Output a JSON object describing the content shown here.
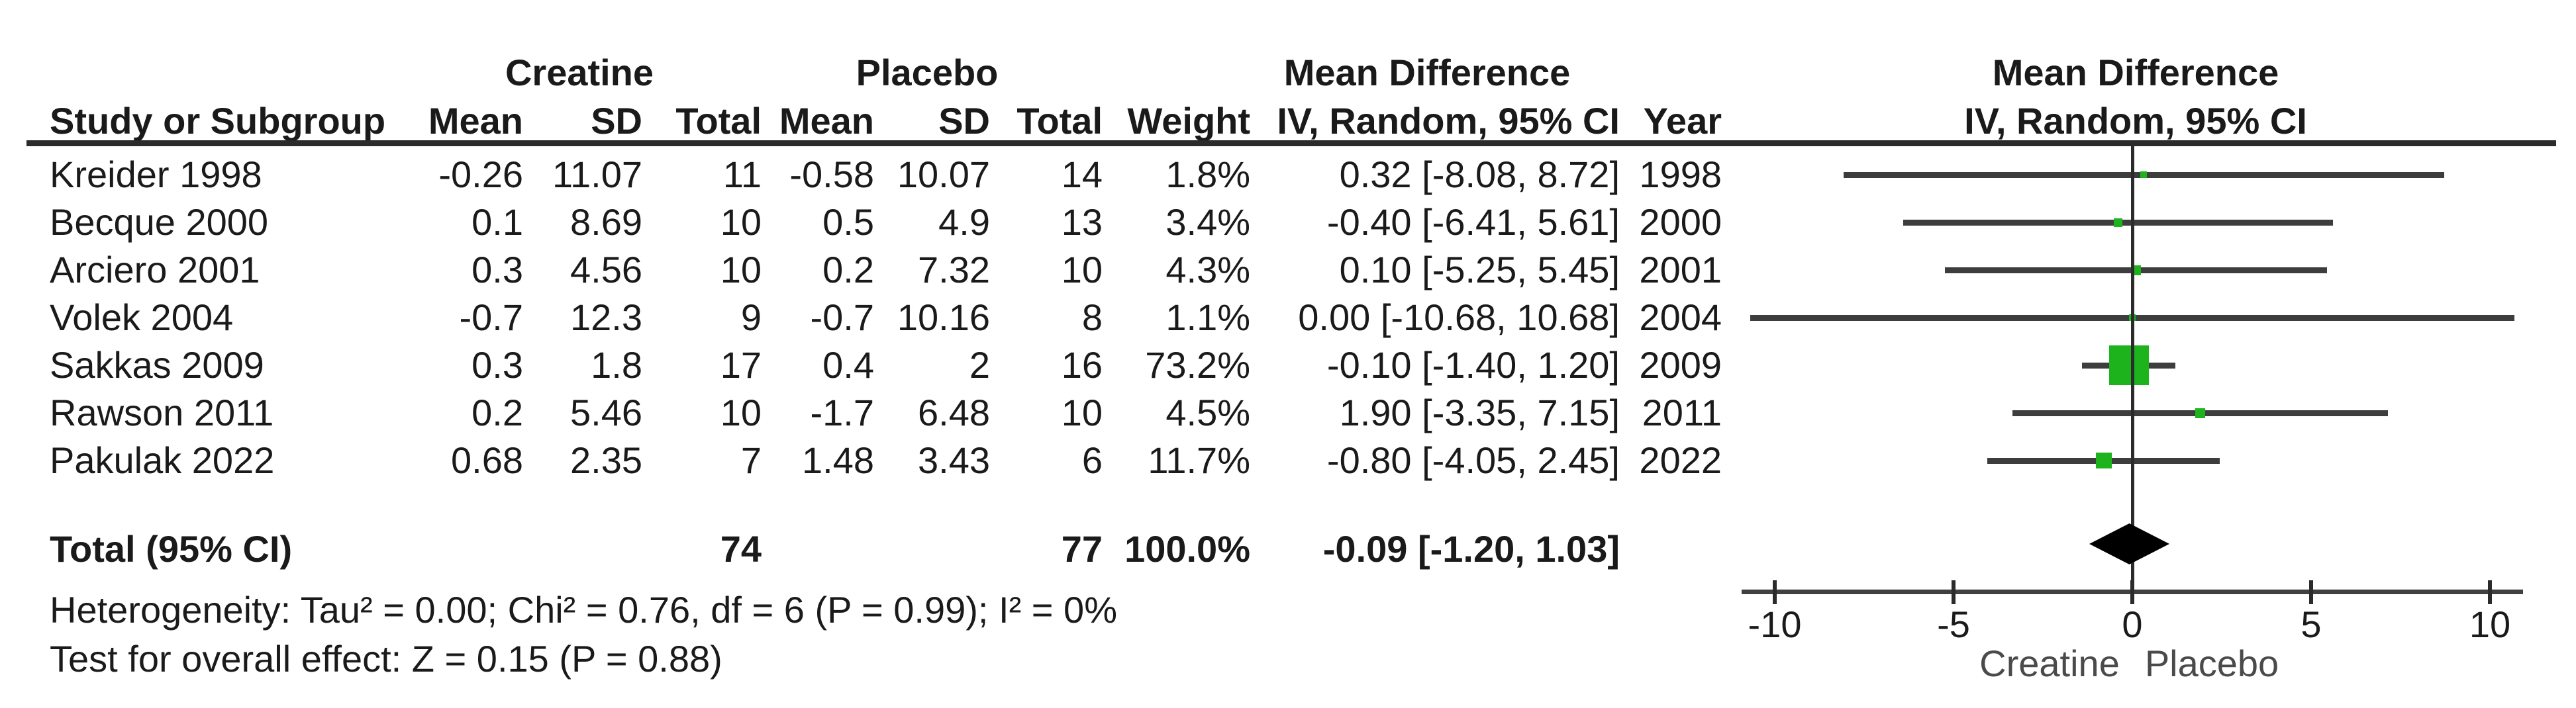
{
  "header": {
    "group1": "Creatine",
    "group2": "Placebo",
    "md_title": "Mean Difference",
    "md_sub": "IV, Random, 95% CI",
    "year_col": "Year",
    "study_col": "Study or Subgroup",
    "mean_col": "Mean",
    "sd_col": "SD",
    "total_col": "Total",
    "weight_col": "Weight",
    "plot_title": "Mean Difference",
    "plot_sub": "IV, Random, 95% CI"
  },
  "total_row": {
    "label": "Total (95% CI)",
    "creatine_total": "74",
    "placebo_total": "77",
    "weight": "100.0%",
    "md_ci": "-0.09 [-1.20, 1.03]"
  },
  "footnotes": {
    "heterogeneity": "Heterogeneity: Tau² = 0.00; Chi² = 0.76, df = 6 (P = 0.99); I² = 0%",
    "overall_effect": "Test for overall effect: Z = 0.15 (P = 0.88)"
  },
  "axis": {
    "left_label": "Creatine",
    "right_label": "Placebo"
  },
  "colors": {
    "marker_green": "#1db31d",
    "diamond": "#000000",
    "ci_line": "#3d3d3d",
    "axis_line": "#404040",
    "text": "#1a1a1a",
    "axis_side_labels": "#4a4a4a"
  },
  "chart_data": {
    "type": "scatter",
    "subtype": "forest-plot",
    "title": "Mean Difference",
    "model": "IV, Random, 95% CI",
    "xlim": [
      -10,
      10
    ],
    "x_ticks": [
      "-10",
      "-5",
      "0",
      "5",
      "10"
    ],
    "x_tick_values": [
      -10,
      -5,
      0,
      5,
      10
    ],
    "axis_left_label": "Creatine",
    "axis_right_label": "Placebo",
    "studies": [
      {
        "name": "Kreider 1998",
        "creatine": {
          "mean": "-0.26",
          "sd": "11.07",
          "total": "11"
        },
        "placebo": {
          "mean": "-0.58",
          "sd": "10.07",
          "total": "14"
        },
        "weight": "1.8%",
        "weight_pct": 1.8,
        "md": 0.32,
        "ci_low": -8.08,
        "ci_high": 8.72,
        "display": "0.32 [-8.08, 8.72]",
        "year": "1998"
      },
      {
        "name": "Becque 2000",
        "creatine": {
          "mean": "0.1",
          "sd": "8.69",
          "total": "10"
        },
        "placebo": {
          "mean": "0.5",
          "sd": "4.9",
          "total": "13"
        },
        "weight": "3.4%",
        "weight_pct": 3.4,
        "md": -0.4,
        "ci_low": -6.41,
        "ci_high": 5.61,
        "display": "-0.40 [-6.41, 5.61]",
        "year": "2000"
      },
      {
        "name": "Arciero 2001",
        "creatine": {
          "mean": "0.3",
          "sd": "4.56",
          "total": "10"
        },
        "placebo": {
          "mean": "0.2",
          "sd": "7.32",
          "total": "10"
        },
        "weight": "4.3%",
        "weight_pct": 4.3,
        "md": 0.1,
        "ci_low": -5.25,
        "ci_high": 5.45,
        "display": "0.10 [-5.25, 5.45]",
        "year": "2001"
      },
      {
        "name": "Volek 2004",
        "creatine": {
          "mean": "-0.7",
          "sd": "12.3",
          "total": "9"
        },
        "placebo": {
          "mean": "-0.7",
          "sd": "10.16",
          "total": "8"
        },
        "weight": "1.1%",
        "weight_pct": 1.1,
        "md": 0.0,
        "ci_low": -10.68,
        "ci_high": 10.68,
        "display": "0.00 [-10.68, 10.68]",
        "year": "2004"
      },
      {
        "name": "Sakkas 2009",
        "creatine": {
          "mean": "0.3",
          "sd": "1.8",
          "total": "17"
        },
        "placebo": {
          "mean": "0.4",
          "sd": "2",
          "total": "16"
        },
        "weight": "73.2%",
        "weight_pct": 73.2,
        "md": -0.1,
        "ci_low": -1.4,
        "ci_high": 1.2,
        "display": "-0.10 [-1.40, 1.20]",
        "year": "2009"
      },
      {
        "name": "Rawson 2011",
        "creatine": {
          "mean": "0.2",
          "sd": "5.46",
          "total": "10"
        },
        "placebo": {
          "mean": "-1.7",
          "sd": "6.48",
          "total": "10"
        },
        "weight": "4.5%",
        "weight_pct": 4.5,
        "md": 1.9,
        "ci_low": -3.35,
        "ci_high": 7.15,
        "display": "1.90 [-3.35, 7.15]",
        "year": "2011"
      },
      {
        "name": "Pakulak 2022",
        "creatine": {
          "mean": "0.68",
          "sd": "2.35",
          "total": "7"
        },
        "placebo": {
          "mean": "1.48",
          "sd": "3.43",
          "total": "6"
        },
        "weight": "11.7%",
        "weight_pct": 11.7,
        "md": -0.8,
        "ci_low": -4.05,
        "ci_high": 2.45,
        "display": "-0.80 [-4.05, 2.45]",
        "year": "2022"
      }
    ],
    "total": {
      "md": -0.09,
      "ci_low": -1.2,
      "ci_high": 1.03
    }
  }
}
